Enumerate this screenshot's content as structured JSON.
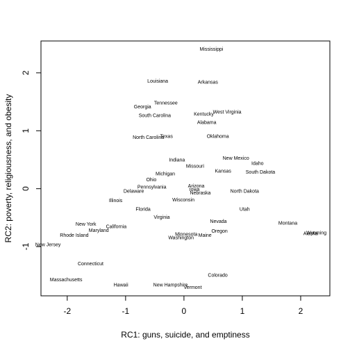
{
  "chart_data": {
    "type": "scatter",
    "title": "",
    "xlabel": "RC1: guns, suicide, and emptiness",
    "ylabel": "RC2: poverty, religiousness, and obesity",
    "xlim": [
      -2.45,
      2.5
    ],
    "ylim": [
      -1.85,
      2.55
    ],
    "xticks": [
      -2,
      -1,
      0,
      1,
      2
    ],
    "yticks": [
      -1,
      0,
      1,
      2
    ],
    "grid": false,
    "points": [
      {
        "label": "Mississippi",
        "x": 0.47,
        "y": 2.41
      },
      {
        "label": "Louisiana",
        "x": -0.45,
        "y": 1.86
      },
      {
        "label": "Arkansas",
        "x": 0.41,
        "y": 1.84
      },
      {
        "label": "Tennessee",
        "x": -0.31,
        "y": 1.48
      },
      {
        "label": "Georgia",
        "x": -0.71,
        "y": 1.42
      },
      {
        "label": "West Virginia",
        "x": 0.74,
        "y": 1.33
      },
      {
        "label": "South Carolina",
        "x": -0.5,
        "y": 1.27
      },
      {
        "label": "Kentucky",
        "x": 0.34,
        "y": 1.29
      },
      {
        "label": "Alabama",
        "x": 0.39,
        "y": 1.15
      },
      {
        "label": "North Carolina",
        "x": -0.61,
        "y": 0.89
      },
      {
        "label": "Texas",
        "x": -0.3,
        "y": 0.91
      },
      {
        "label": "Oklahoma",
        "x": 0.58,
        "y": 0.91
      },
      {
        "label": "New Mexico",
        "x": 0.89,
        "y": 0.53
      },
      {
        "label": "Indiana",
        "x": -0.12,
        "y": 0.5
      },
      {
        "label": "Idaho",
        "x": 1.26,
        "y": 0.44
      },
      {
        "label": "Missouri",
        "x": 0.19,
        "y": 0.39
      },
      {
        "label": "Kansas",
        "x": 0.67,
        "y": 0.31
      },
      {
        "label": "South Dakota",
        "x": 1.31,
        "y": 0.29
      },
      {
        "label": "Michigan",
        "x": -0.32,
        "y": 0.26
      },
      {
        "label": "Ohio",
        "x": -0.56,
        "y": 0.16
      },
      {
        "label": "Pennsylvania",
        "x": -0.55,
        "y": 0.03
      },
      {
        "label": "Arizona",
        "x": 0.21,
        "y": 0.05
      },
      {
        "label": "Delaware",
        "x": -0.86,
        "y": -0.04
      },
      {
        "label": "Iowa",
        "x": 0.18,
        "y": -0.01
      },
      {
        "label": "North Dakota",
        "x": 1.04,
        "y": -0.04
      },
      {
        "label": "Nebraska",
        "x": 0.28,
        "y": -0.07
      },
      {
        "label": "Wisconsin",
        "x": -0.01,
        "y": -0.19
      },
      {
        "label": "Illinois",
        "x": -1.17,
        "y": -0.2
      },
      {
        "label": "Utah",
        "x": 1.04,
        "y": -0.35
      },
      {
        "label": "Florida",
        "x": -0.7,
        "y": -0.35
      },
      {
        "label": "Virginia",
        "x": -0.38,
        "y": -0.49
      },
      {
        "label": "Nevada",
        "x": 0.59,
        "y": -0.56
      },
      {
        "label": "Montana",
        "x": 1.78,
        "y": -0.59
      },
      {
        "label": "New York",
        "x": -1.68,
        "y": -0.61
      },
      {
        "label": "California",
        "x": -1.16,
        "y": -0.65
      },
      {
        "label": "Maryland",
        "x": -1.46,
        "y": -0.72
      },
      {
        "label": "Oregon",
        "x": 0.61,
        "y": -0.73
      },
      {
        "label": "Wyoming",
        "x": 2.27,
        "y": -0.76
      },
      {
        "label": "Alaska",
        "x": 2.17,
        "y": -0.77
      },
      {
        "label": "Rhode Island",
        "x": -1.88,
        "y": -0.8
      },
      {
        "label": "Minnesota",
        "x": 0.04,
        "y": -0.78
      },
      {
        "label": "Maine",
        "x": 0.36,
        "y": -0.8
      },
      {
        "label": "Washington",
        "x": -0.05,
        "y": -0.84
      },
      {
        "label": "New Jersey",
        "x": -2.33,
        "y": -0.96
      },
      {
        "label": "Connecticut",
        "x": -1.6,
        "y": -1.29
      },
      {
        "label": "Colorado",
        "x": 0.58,
        "y": -1.49
      },
      {
        "label": "Massachusetts",
        "x": -2.02,
        "y": -1.57
      },
      {
        "label": "Hawaii",
        "x": -1.08,
        "y": -1.66
      },
      {
        "label": "New Hampshire",
        "x": -0.23,
        "y": -1.66
      },
      {
        "label": "Vermont",
        "x": 0.15,
        "y": -1.7
      }
    ]
  }
}
